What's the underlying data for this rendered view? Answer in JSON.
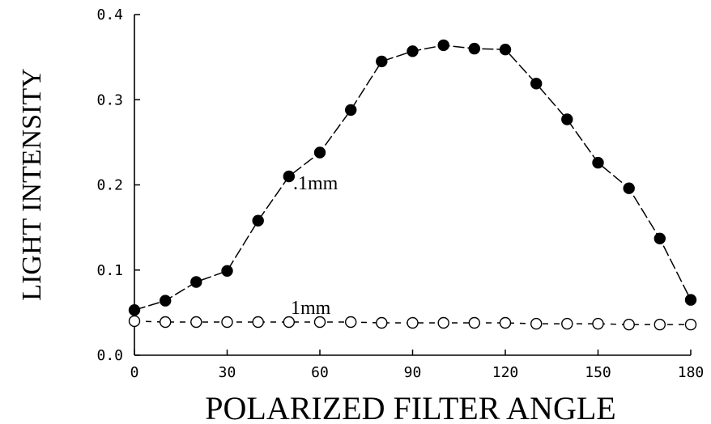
{
  "chart_data": {
    "type": "line",
    "title": "",
    "xlabel": "POLARIZED FILTER ANGLE",
    "ylabel": "LIGHT INTENSITY",
    "xlim": [
      0,
      180
    ],
    "ylim": [
      0.0,
      0.4
    ],
    "x_ticks": [
      0,
      30,
      60,
      90,
      120,
      150,
      180
    ],
    "x_tick_labels": [
      "0",
      "30",
      "60",
      "90",
      "120",
      "150",
      "180"
    ],
    "y_ticks": [
      0.0,
      0.1,
      0.2,
      0.3,
      0.4
    ],
    "y_tick_labels": [
      "0.0",
      "0.1",
      "0.2",
      "0.3",
      "0.4"
    ],
    "grid": false,
    "x": [
      0,
      10,
      20,
      30,
      40,
      50,
      60,
      70,
      80,
      90,
      100,
      110,
      120,
      130,
      140,
      150,
      160,
      170,
      180
    ],
    "series": [
      {
        "name": ".1mm",
        "marker": "filled-circle",
        "line_style": "long-dash",
        "values": [
          0.053,
          0.064,
          0.086,
          0.099,
          0.158,
          0.21,
          0.238,
          0.288,
          0.345,
          0.357,
          0.364,
          0.36,
          0.359,
          0.319,
          0.277,
          0.226,
          0.196,
          0.137,
          0.065
        ]
      },
      {
        "name": "1mm",
        "marker": "open-circle",
        "line_style": "short-dash",
        "values": [
          0.04,
          0.039,
          0.039,
          0.039,
          0.039,
          0.039,
          0.039,
          0.039,
          0.038,
          0.038,
          0.038,
          0.038,
          0.038,
          0.037,
          0.037,
          0.037,
          0.036,
          0.036,
          0.036
        ]
      }
    ]
  }
}
